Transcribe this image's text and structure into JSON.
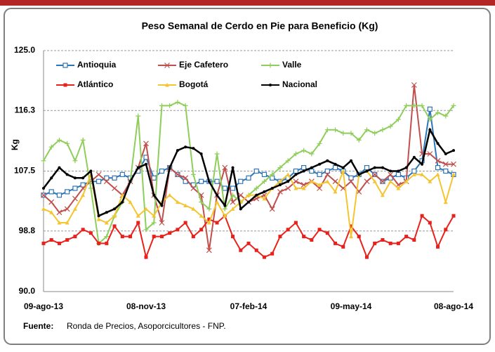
{
  "chart_data": {
    "type": "line",
    "title": "Peso Semanal de Cerdo en Pie para Beneficio (Kg)",
    "y_label": "Kg",
    "source_label": "Fuente:",
    "source_text": "Ronda de Precios, Asoporcicultores  - FNP.",
    "categories": [
      "09-ago-13",
      null,
      null,
      null,
      null,
      null,
      null,
      null,
      null,
      null,
      null,
      null,
      null,
      "08-nov-13",
      null,
      null,
      null,
      null,
      null,
      null,
      null,
      null,
      null,
      null,
      null,
      null,
      "07-feb-14",
      null,
      null,
      null,
      null,
      null,
      null,
      null,
      null,
      null,
      null,
      null,
      null,
      "09-may-14",
      null,
      null,
      null,
      null,
      null,
      null,
      null,
      null,
      null,
      null,
      null,
      null,
      "08-ago-14"
    ],
    "ylim": [
      90,
      125
    ],
    "yticks": [
      {
        "value": 90,
        "label": "90.0"
      },
      98.8,
      107.5,
      116.3,
      {
        "value": 125,
        "label": "125.0"
      }
    ],
    "grid": true,
    "legend": "top-left",
    "series": [
      {
        "name": "Antioquia",
        "color": "#2e75b6",
        "marker": "square-open",
        "values": [
          104,
          104.5,
          104,
          104.5,
          105,
          105.5,
          106,
          106,
          106.5,
          106.5,
          107,
          106.5,
          107.5,
          109.5,
          106.5,
          107.5,
          108,
          107,
          106,
          105.5,
          106,
          106,
          106,
          105,
          105,
          106,
          106.5,
          107.5,
          107,
          106.5,
          106,
          106.5,
          107.5,
          108,
          107.5,
          107,
          107.5,
          108,
          107.5,
          106.5,
          107,
          108,
          107,
          106,
          106.5,
          107,
          106.5,
          107.5,
          109,
          116.5,
          108,
          107.5,
          107
        ]
      },
      {
        "name": "Eje Cafetero",
        "color": "#c0504d",
        "marker": "x",
        "values": [
          104,
          103,
          101.5,
          102,
          103.5,
          105,
          106,
          107,
          106,
          105,
          104,
          106,
          108,
          111.5,
          104,
          100,
          108,
          107,
          106.5,
          105,
          104,
          96,
          104,
          108,
          103,
          104,
          103,
          103.5,
          104,
          102,
          104.5,
          105,
          106,
          105.5,
          106,
          105,
          107,
          106,
          105,
          106,
          104.5,
          106,
          107,
          106,
          107,
          105.5,
          106,
          120,
          110,
          110,
          109,
          108.5,
          108.5
        ]
      },
      {
        "name": "Valle",
        "color": "#8fce5a",
        "marker": "plus",
        "values": [
          109,
          111,
          112,
          111.5,
          109,
          112,
          105,
          97,
          98,
          101,
          103,
          106,
          115.5,
          99,
          100,
          117,
          117,
          117.5,
          117,
          107,
          103,
          102,
          110,
          102,
          104,
          103,
          104,
          105,
          106,
          107,
          108,
          109,
          110,
          110.5,
          110,
          111.5,
          113.5,
          113.5,
          113,
          113,
          112,
          113.5,
          113,
          113.5,
          114,
          115,
          117,
          117,
          117,
          115,
          116,
          115.5,
          117
        ]
      },
      {
        "name": "Atlántico",
        "color": "#e8221b",
        "marker": "square",
        "values": [
          97,
          97.5,
          97,
          97.5,
          98,
          99,
          98.5,
          97,
          97,
          99.5,
          98,
          98,
          100,
          95,
          98,
          98,
          98.5,
          99,
          100,
          98,
          99,
          100.5,
          100,
          101,
          98,
          96,
          97,
          96,
          95,
          95.5,
          98,
          99,
          100,
          98,
          97.5,
          99,
          98.5,
          97,
          96.5,
          99.5,
          98,
          95,
          97,
          97.5,
          97,
          97,
          98,
          97.5,
          101,
          100,
          96.5,
          99,
          101
        ]
      },
      {
        "name": "Bogotá",
        "color": "#f5c431",
        "marker": "triangle",
        "values": [
          102,
          101.5,
          100,
          100,
          102,
          104,
          107,
          100.5,
          100,
          101,
          104,
          103,
          101,
          102,
          101,
          103,
          104,
          103,
          102.5,
          102,
          101,
          100,
          103,
          101,
          102,
          103,
          104,
          104,
          103.5,
          105,
          106,
          107,
          105,
          105,
          106,
          105.5,
          106,
          104.5,
          107.5,
          98,
          107,
          107.5,
          106,
          104,
          106,
          105,
          106,
          107,
          107,
          106,
          107,
          103,
          107
        ]
      },
      {
        "name": "Nacional",
        "color": "#000000",
        "marker": "circle",
        "values": [
          105,
          106.5,
          108,
          107,
          106.5,
          106.5,
          107.5,
          101,
          101.5,
          102,
          103,
          106,
          108,
          108.5,
          104,
          102.5,
          108,
          110.5,
          111,
          110.8,
          110,
          106,
          104,
          102.5,
          108,
          102,
          103,
          104,
          104.5,
          105,
          105.5,
          106,
          107,
          107.5,
          108,
          108.5,
          109,
          108.5,
          108,
          109,
          107,
          107.5,
          108,
          108,
          107.5,
          107.5,
          108,
          109.5,
          108.5,
          113.5,
          111.5,
          110,
          110.5
        ]
      }
    ]
  }
}
